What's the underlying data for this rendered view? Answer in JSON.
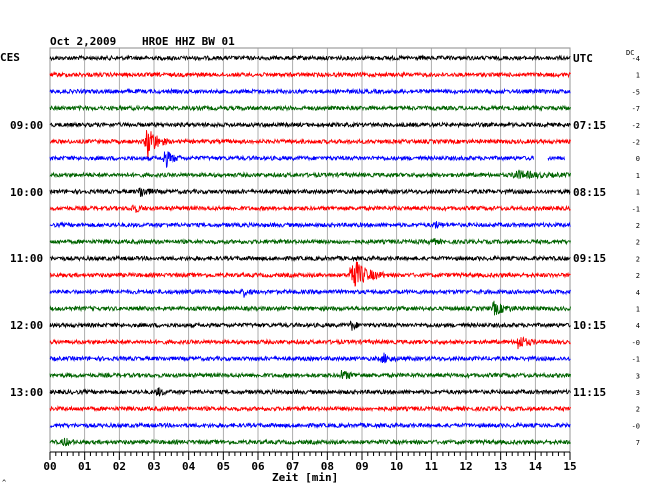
{
  "header": {
    "date": "Oct 2,2009",
    "station": "HROE HHZ BW 01",
    "left_tz": "CES",
    "right_tz": "UTC",
    "dc_label": "DC"
  },
  "chart_data": {
    "type": "line",
    "title": "Oct 2,2009   HROE HHZ BW 01",
    "xlabel": "Zeit [min]",
    "xlim": [
      0,
      15
    ],
    "x_tick_labels": [
      "00",
      "01",
      "02",
      "03",
      "04",
      "05",
      "06",
      "07",
      "08",
      "09",
      "10",
      "11",
      "12",
      "13",
      "14",
      "15"
    ],
    "trace_colors": [
      "#000000",
      "#ff0000",
      "#0000ff",
      "#006400"
    ],
    "left_time_labels": [
      {
        "row": 4,
        "label": "09:00"
      },
      {
        "row": 8,
        "label": "10:00"
      },
      {
        "row": 12,
        "label": "11:00"
      },
      {
        "row": 16,
        "label": "12:00"
      },
      {
        "row": 20,
        "label": "13:00"
      }
    ],
    "right_time_labels": [
      {
        "row": 0,
        "label": "UTC"
      },
      {
        "row": 4,
        "label": "07:15"
      },
      {
        "row": 8,
        "label": "08:15"
      },
      {
        "row": 12,
        "label": "09:15"
      },
      {
        "row": 16,
        "label": "10:15"
      },
      {
        "row": 20,
        "label": "11:15"
      }
    ],
    "dc_offsets": [
      "-4",
      "1",
      "-5",
      "-7",
      "-2",
      "-2",
      "0",
      "1",
      "1",
      "-1",
      "2",
      "2",
      "2",
      "2",
      "4",
      "1",
      "4",
      "-0",
      "-1",
      "3",
      "3",
      "2",
      "-0",
      "7"
    ],
    "events": [
      {
        "row": 5,
        "t": 2.8,
        "amp": 20,
        "len": 0.6
      },
      {
        "row": 6,
        "t": 3.3,
        "amp": 10,
        "len": 0.5
      },
      {
        "row": 7,
        "t": 13.4,
        "amp": 4,
        "len": 1.5
      },
      {
        "row": 8,
        "t": 2.6,
        "amp": 6,
        "len": 0.5
      },
      {
        "row": 9,
        "t": 2.4,
        "amp": 5,
        "len": 0.4
      },
      {
        "row": 10,
        "t": 11.1,
        "amp": 3,
        "len": 0.4
      },
      {
        "row": 11,
        "t": 11.0,
        "amp": 4,
        "len": 0.3
      },
      {
        "row": 13,
        "t": 8.7,
        "amp": 18,
        "len": 1.0
      },
      {
        "row": 14,
        "t": 5.6,
        "amp": 4,
        "len": 0.3
      },
      {
        "row": 15,
        "t": 12.8,
        "amp": 6,
        "len": 0.8
      },
      {
        "row": 16,
        "t": 8.7,
        "amp": 5,
        "len": 0.3
      },
      {
        "row": 17,
        "t": 13.5,
        "amp": 7,
        "len": 0.6
      },
      {
        "row": 18,
        "t": 9.6,
        "amp": 5,
        "len": 0.5
      },
      {
        "row": 19,
        "t": 8.4,
        "amp": 4,
        "len": 0.8
      },
      {
        "row": 20,
        "t": 3.1,
        "amp": 4,
        "len": 0.4
      },
      {
        "row": 23,
        "t": 0.4,
        "amp": 4,
        "len": 0.4
      }
    ],
    "gaps": [
      {
        "row": 6,
        "from": 13.95,
        "to": 14.35
      },
      {
        "row": 6,
        "from": 14.85,
        "to": 15.0
      }
    ]
  },
  "footer": {
    "corner_mark": "^"
  }
}
